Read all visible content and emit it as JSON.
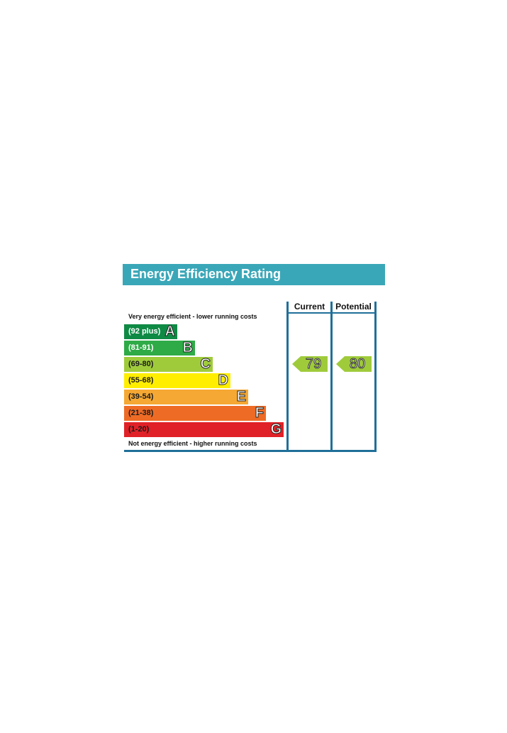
{
  "title": "Energy Efficiency Rating",
  "chart_data": {
    "type": "bar",
    "title": "Energy Efficiency Rating",
    "top_note": "Very energy efficient - lower running costs",
    "bottom_note": "Not energy efficient - higher running costs",
    "columns": [
      "Current",
      "Potential"
    ],
    "bands": [
      {
        "letter": "A",
        "range": "(92 plus)",
        "color": "#0f8a45",
        "text_color": "#ffffff"
      },
      {
        "letter": "B",
        "range": "(81-91)",
        "color": "#2eab47",
        "text_color": "#ffffff"
      },
      {
        "letter": "C",
        "range": "(69-80)",
        "color": "#9fcb3b",
        "text_color": "#1a1a1a"
      },
      {
        "letter": "D",
        "range": "(55-68)",
        "color": "#ffee00",
        "text_color": "#1a1a1a"
      },
      {
        "letter": "E",
        "range": "(39-54)",
        "color": "#f5a833",
        "text_color": "#1a1a1a"
      },
      {
        "letter": "F",
        "range": "(21-38)",
        "color": "#ee6b25",
        "text_color": "#1a1a1a"
      },
      {
        "letter": "G",
        "range": "(1-20)",
        "color": "#e02127",
        "text_color": "#1a1a1a"
      }
    ],
    "current": {
      "value": 79,
      "band": "C",
      "color": "#9fcb3b"
    },
    "potential": {
      "value": 80,
      "band": "C",
      "color": "#9fcb3b"
    }
  }
}
